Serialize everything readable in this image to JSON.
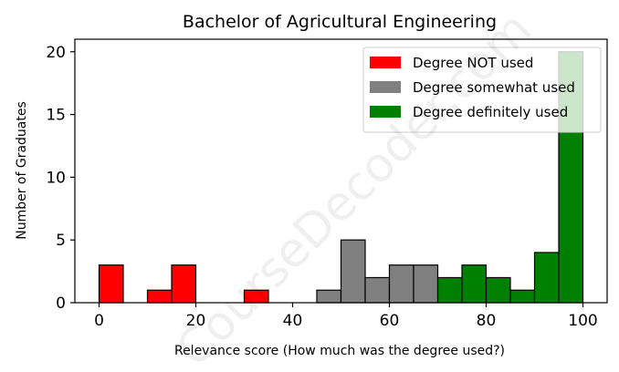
{
  "chart_data": {
    "type": "bar",
    "title": "Bachelor of Agricultural Engineering",
    "xlabel": "Relevance score (How much was the degree used?)",
    "ylabel": "Number of Graduates",
    "xlim": [
      -5,
      105
    ],
    "ylim": [
      0,
      21
    ],
    "xticks": [
      0,
      20,
      40,
      60,
      80,
      100
    ],
    "yticks": [
      0,
      5,
      10,
      15,
      20
    ],
    "bin_width": 5,
    "grid": false,
    "legend_position": "top-right",
    "watermark": "CourseDecoder.com",
    "series": [
      {
        "name": "Degree NOT used",
        "color": "#ff0000",
        "bins": [
          {
            "start": 0,
            "count": 3
          },
          {
            "start": 5,
            "count": 0
          },
          {
            "start": 10,
            "count": 1
          },
          {
            "start": 15,
            "count": 3
          },
          {
            "start": 20,
            "count": 0
          },
          {
            "start": 25,
            "count": 0
          },
          {
            "start": 30,
            "count": 1
          },
          {
            "start": 35,
            "count": 0
          },
          {
            "start": 40,
            "count": 0
          }
        ]
      },
      {
        "name": "Degree somewhat used",
        "color": "#808080",
        "bins": [
          {
            "start": 45,
            "count": 1
          },
          {
            "start": 50,
            "count": 5
          },
          {
            "start": 55,
            "count": 2
          },
          {
            "start": 60,
            "count": 3
          },
          {
            "start": 65,
            "count": 3
          }
        ]
      },
      {
        "name": "Degree definitely used",
        "color": "#008000",
        "bins": [
          {
            "start": 70,
            "count": 2
          },
          {
            "start": 75,
            "count": 3
          },
          {
            "start": 80,
            "count": 2
          },
          {
            "start": 85,
            "count": 1
          },
          {
            "start": 90,
            "count": 4
          },
          {
            "start": 95,
            "count": 20
          }
        ]
      }
    ]
  }
}
